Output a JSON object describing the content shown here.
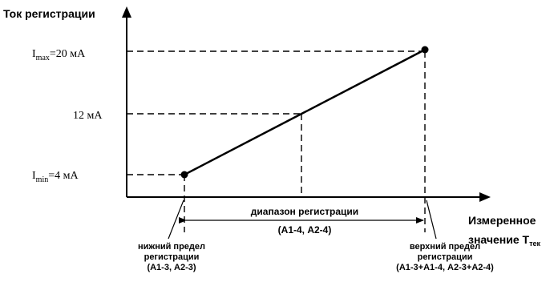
{
  "y_axis_label": "Ток регистрации",
  "x_axis_label": {
    "line1": "Измеренное",
    "line2_main": "значение T",
    "line2_sub": "тек"
  },
  "y_ticks": {
    "max": {
      "symbol": "I",
      "sub": "max",
      "value": "=20 мА"
    },
    "mid": {
      "value": "12 мА"
    },
    "min": {
      "symbol": "I",
      "sub": "min",
      "value": "=4 мА"
    }
  },
  "range": {
    "title": "диапазон регистрации",
    "params": "(А1-4, А2-4)"
  },
  "lower_limit": {
    "line1": "нижний предел",
    "line2": "регистрации",
    "line3": "(А1-3, А2-3)"
  },
  "upper_limit": {
    "line1": "верхний предел",
    "line2": "регистрации",
    "line3": "(А1-3+А1-4, А2-3+А2-4)"
  }
}
